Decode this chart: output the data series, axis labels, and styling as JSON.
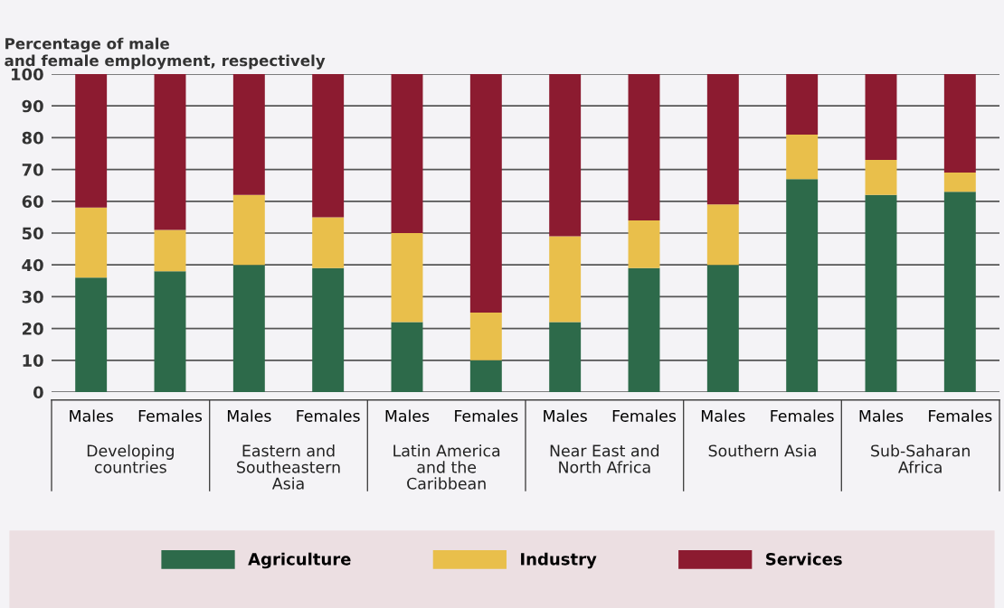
{
  "chart_data": {
    "type": "bar",
    "stacked": true,
    "ylabel": "Percentage of male\nand female employment, respectively",
    "categories": [
      "Males",
      "Females",
      "Males",
      "Females",
      "Males",
      "Females",
      "Males",
      "Females",
      "Males",
      "Females",
      "Males",
      "Females"
    ],
    "annotations": [
      "Developing\ncountries",
      "Eastern and\nSoutheastern\nAsia",
      "Latin America\nand the\nCaribbean",
      "Near East and\nNorth Africa",
      "Southern Asia",
      "Sub-Saharan\nAfrica"
    ],
    "series": [
      {
        "name": "Agriculture",
        "color": "#2d6a4a",
        "values": [
          36,
          38,
          40,
          39,
          22,
          10,
          22,
          39,
          40,
          67,
          62,
          63
        ]
      },
      {
        "name": "Industry",
        "color": "#e9bf4b",
        "values": [
          22,
          13,
          22,
          16,
          28,
          15,
          27,
          15,
          19,
          14,
          11,
          6
        ]
      },
      {
        "name": "Services",
        "color": "#8c1b30",
        "values": [
          42,
          49,
          38,
          45,
          50,
          75,
          51,
          46,
          41,
          19,
          27,
          31
        ]
      }
    ],
    "ylim": [
      0,
      100
    ],
    "yticks": [
      0,
      10,
      20,
      30,
      40,
      50,
      60,
      70,
      80,
      90,
      100
    ],
    "grid": "y",
    "legend": "bottom"
  }
}
